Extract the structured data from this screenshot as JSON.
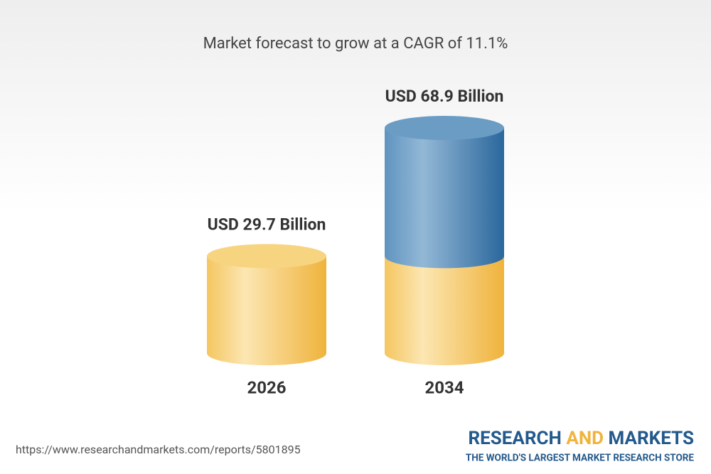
{
  "chart_data": {
    "type": "cylinder",
    "title": "Market forecast to grow at a CAGR of 11.1%",
    "categories": [
      "2026",
      "2034"
    ],
    "values": [
      29.7,
      68.9
    ],
    "value_labels": [
      "USD 29.7 Billion",
      "USD 68.9 Billion"
    ],
    "colors": [
      "#f3c45c",
      "#4f89b8"
    ]
  },
  "footer": {
    "url": "https://www.researchandmarkets.com/reports/5801895",
    "brand": [
      "RESEARCH",
      "AND",
      "MARKETS"
    ],
    "tagline": "THE WORLD'S LARGEST MARKET RESEARCH STORE"
  }
}
